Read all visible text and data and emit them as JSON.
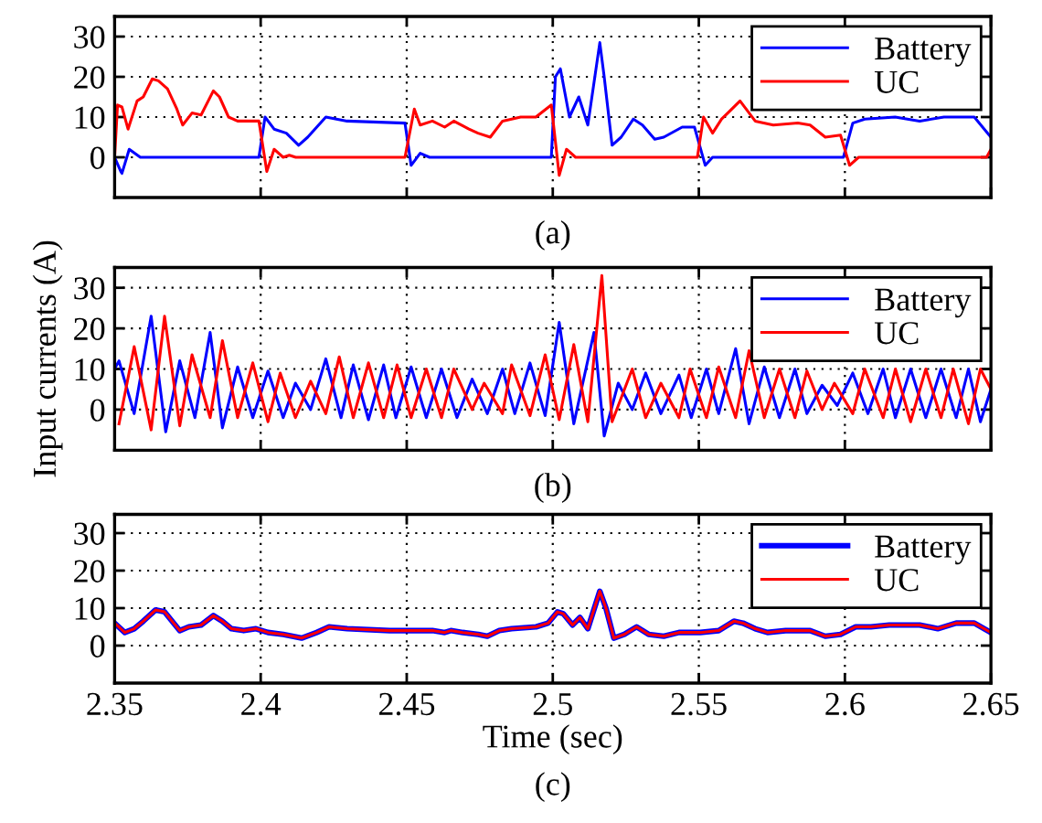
{
  "chart_data": [
    {
      "type": "line",
      "annotations": [
        "(a)"
      ],
      "xlim": [
        2.35,
        2.65
      ],
      "ylim": [
        -10,
        35
      ],
      "xticks": [
        2.35,
        2.4,
        2.45,
        2.5,
        2.55,
        2.6,
        2.65
      ],
      "yticks": [
        0,
        10,
        20,
        30
      ],
      "grid": true,
      "legend": "top right",
      "tick_labels": "y",
      "line_style": "solid",
      "series": [
        {
          "name": "Battery",
          "color": "#0000ff",
          "x": [
            2.35,
            2.3521,
            2.3525,
            2.355,
            2.3588,
            2.3994,
            2.4015,
            2.4046,
            2.4088,
            2.413,
            2.4161,
            2.4223,
            2.4296,
            2.4494,
            2.4515,
            2.4546,
            2.4578,
            2.4995,
            2.5009,
            2.5026,
            2.5057,
            2.5089,
            2.512,
            2.5161,
            2.5176,
            2.5203,
            2.5234,
            2.5276,
            2.5307,
            2.5349,
            2.538,
            2.5443,
            2.5485,
            2.5522,
            2.5547,
            2.5995,
            2.6027,
            2.6068,
            2.6172,
            2.6256,
            2.6339,
            2.6443,
            2.65
          ],
          "values": [
            0,
            -3.5,
            -4,
            2,
            0,
            0,
            10,
            7,
            6,
            3,
            5,
            10,
            9,
            8.5,
            -2,
            1,
            0,
            0,
            20,
            22,
            10,
            15,
            8,
            28.5,
            20,
            3,
            5,
            9.5,
            8,
            4.5,
            5,
            7.5,
            7.5,
            -2,
            0,
            0,
            8.5,
            9.5,
            10,
            9,
            10,
            10,
            5
          ]
        },
        {
          "name": "UC",
          "color": "#ff0000",
          "x": [
            2.35,
            2.351,
            2.3525,
            2.3546,
            2.3577,
            2.3598,
            2.3629,
            2.365,
            2.3681,
            2.3713,
            2.3733,
            2.3765,
            2.3796,
            2.3838,
            2.3859,
            2.389,
            2.3921,
            2.3963,
            2.3994,
            2.4021,
            2.4046,
            2.4077,
            2.4098,
            2.412,
            2.4494,
            2.4526,
            2.4546,
            2.4588,
            2.463,
            2.4661,
            2.4713,
            2.4744,
            2.4786,
            2.4828,
            2.489,
            2.4942,
            2.4995,
            2.5022,
            2.5047,
            2.5078,
            2.5495,
            2.5516,
            2.5547,
            2.5578,
            2.5599,
            2.5641,
            2.5693,
            2.5755,
            2.5839,
            2.5881,
            2.5933,
            2.5985,
            2.6016,
            2.6047,
            2.6485,
            2.65
          ],
          "values": [
            0,
            13,
            12.5,
            7,
            14,
            15,
            19.5,
            19,
            17,
            12,
            8,
            11,
            10.5,
            16.5,
            15,
            10,
            9,
            9,
            9,
            -3.5,
            2,
            0,
            0.5,
            0,
            0,
            12,
            8,
            9,
            7.5,
            9,
            7,
            6,
            5,
            9,
            10,
            10,
            13,
            -4.5,
            2,
            0,
            0,
            10,
            6,
            9.5,
            11,
            14,
            9,
            8,
            8.5,
            8,
            5,
            5.5,
            -2,
            0,
            0,
            2
          ]
        }
      ]
    },
    {
      "type": "line",
      "ylabel": "Input currents (A)",
      "annotations": [
        "(b)"
      ],
      "xlim": [
        2.35,
        2.65
      ],
      "ylim": [
        -10,
        35
      ],
      "xticks": [
        2.35,
        2.4,
        2.45,
        2.5,
        2.55,
        2.6,
        2.65
      ],
      "yticks": [
        0,
        10,
        20,
        30
      ],
      "grid": true,
      "legend": "top right",
      "tick_labels": "y",
      "line_style": "solid",
      "series": [
        {
          "name": "Battery",
          "color": "#0000ff",
          "x": [
            2.35,
            2.3515,
            2.3567,
            2.3625,
            2.3675,
            2.3723,
            2.3775,
            2.3827,
            2.3869,
            2.3921,
            2.3973,
            2.4025,
            2.4077,
            2.4119,
            2.4171,
            2.4223,
            2.4275,
            2.4317,
            2.4369,
            2.4421,
            2.4463,
            2.4515,
            2.4567,
            2.4619,
            2.4672,
            2.4724,
            2.4776,
            2.4828,
            2.487,
            2.4922,
            2.4974,
            2.5022,
            2.5072,
            2.5141,
            2.5176,
            2.5224,
            2.5272,
            2.5318,
            2.537,
            2.5432,
            2.5474,
            2.5526,
            2.5568,
            2.5626,
            2.5672,
            2.5724,
            2.5776,
            2.5829,
            2.587,
            2.5922,
            2.5974,
            2.6027,
            2.6079,
            2.6131,
            2.6173,
            2.6225,
            2.6277,
            2.6329,
            2.6381,
            2.6423,
            2.6464,
            2.65
          ],
          "values": [
            10,
            12,
            -1,
            23,
            -5.5,
            12,
            -2,
            19,
            -4.5,
            10.5,
            -2,
            9.5,
            -2,
            6.5,
            0,
            12.5,
            -2,
            11,
            -2.5,
            11,
            -2,
            10.5,
            -2,
            10,
            -2,
            7.5,
            -1,
            10,
            -1,
            11.5,
            -1.5,
            21.5,
            -3.5,
            19,
            -6.5,
            6.5,
            0,
            9,
            -1,
            8.5,
            -2,
            10,
            -1,
            15,
            -3.5,
            10.5,
            -2,
            10,
            -1,
            6,
            1,
            9,
            -1,
            10,
            -2,
            10,
            -2,
            10,
            -2,
            10,
            -3,
            5
          ]
        },
        {
          "name": "UC",
          "color": "#ff0000",
          "x": [
            2.3515,
            2.3567,
            2.3625,
            2.3671,
            2.3723,
            2.3765,
            2.3827,
            2.3869,
            2.3921,
            2.3973,
            2.4025,
            2.4067,
            2.4119,
            2.4171,
            2.4223,
            2.4269,
            2.4317,
            2.4369,
            2.4421,
            2.4467,
            2.4515,
            2.4567,
            2.4619,
            2.4661,
            2.4724,
            2.4765,
            2.4828,
            2.4859,
            2.4922,
            2.4974,
            2.5022,
            2.5072,
            2.512,
            2.5168,
            2.5203,
            2.5272,
            2.5318,
            2.537,
            2.5432,
            2.547,
            2.5526,
            2.5568,
            2.5626,
            2.5672,
            2.5724,
            2.5776,
            2.5829,
            2.587,
            2.5922,
            2.5964,
            2.6027,
            2.6068,
            2.6131,
            2.6173,
            2.6225,
            2.6277,
            2.6329,
            2.6371,
            2.6423,
            2.6464,
            2.65
          ],
          "values": [
            -3.5,
            15.5,
            -5,
            23,
            -4,
            13.5,
            -2,
            17,
            -2,
            11.5,
            -3,
            9,
            -2,
            7,
            -1,
            13,
            -2,
            11.5,
            -2,
            11,
            -2,
            10,
            -2,
            10,
            0,
            6.5,
            -1,
            11,
            -1.5,
            13.5,
            -2.5,
            16,
            -3,
            33,
            -3,
            10,
            -2,
            6.5,
            -2,
            10,
            -2,
            10.5,
            -2,
            14.5,
            -2,
            10,
            -2,
            9.5,
            0,
            6.5,
            -1,
            10,
            -2,
            10,
            -3,
            10,
            -2,
            10,
            -3.5,
            10,
            5
          ]
        }
      ]
    },
    {
      "type": "line",
      "xlabel": "Time (sec)",
      "annotations": [
        "(c)"
      ],
      "xlim": [
        2.35,
        2.65
      ],
      "ylim": [
        -10,
        35
      ],
      "xticks": [
        2.35,
        2.4,
        2.45,
        2.5,
        2.55,
        2.6,
        2.65
      ],
      "yticks": [
        0,
        10,
        20,
        30
      ],
      "grid": true,
      "legend": "top right",
      "line_style": "solid",
      "series": [
        {
          "name": "Battery",
          "color": "#0000ff",
          "x": [
            2.35,
            2.3535,
            2.3567,
            2.3598,
            2.364,
            2.3671,
            2.3702,
            2.3723,
            2.3754,
            2.3796,
            2.3838,
            2.3869,
            2.39,
            2.3942,
            2.3984,
            2.4025,
            2.4077,
            2.414,
            2.4192,
            2.4234,
            2.4296,
            2.4442,
            2.4588,
            2.463,
            2.4651,
            2.4692,
            2.4745,
            2.4776,
            2.4817,
            2.4859,
            2.4943,
            2.4984,
            2.5016,
            2.5036,
            2.5068,
            2.5093,
            2.512,
            2.5161,
            2.5182,
            2.5209,
            2.5245,
            2.5287,
            2.5328,
            2.538,
            2.5432,
            2.5505,
            2.5568,
            2.562,
            2.5651,
            2.5693,
            2.5735,
            2.5797,
            2.5881,
            2.5933,
            2.5985,
            2.6037,
            2.6089,
            2.6152,
            2.6256,
            2.6318,
            2.6381,
            2.6443,
            2.65
          ],
          "values": [
            6,
            3.5,
            4.5,
            6.5,
            9.5,
            9,
            6,
            4,
            5,
            5.5,
            8,
            6.5,
            4.5,
            4,
            4.5,
            3.5,
            3,
            2,
            3.5,
            5,
            4.5,
            4,
            4,
            3.5,
            4,
            3.5,
            3,
            2.5,
            4,
            4.5,
            5,
            6,
            9,
            8.5,
            5.5,
            7.5,
            4.5,
            14.5,
            10,
            2,
            3,
            5,
            3,
            2.5,
            3.5,
            3.5,
            4,
            6.5,
            6,
            4.5,
            3.5,
            4,
            4,
            2.5,
            3,
            5,
            5,
            5.5,
            5.5,
            4.5,
            6,
            6,
            3.5
          ]
        },
        {
          "name": "UC",
          "color": "#ff0000",
          "x": [
            2.35,
            2.3535,
            2.3567,
            2.3598,
            2.364,
            2.3671,
            2.3702,
            2.3723,
            2.3754,
            2.3796,
            2.3838,
            2.3869,
            2.39,
            2.3942,
            2.3984,
            2.4025,
            2.4077,
            2.414,
            2.4192,
            2.4234,
            2.4296,
            2.4442,
            2.4588,
            2.463,
            2.4651,
            2.4692,
            2.4745,
            2.4776,
            2.4817,
            2.4859,
            2.4943,
            2.4984,
            2.5016,
            2.5036,
            2.5068,
            2.5093,
            2.512,
            2.5161,
            2.5182,
            2.5209,
            2.5245,
            2.5287,
            2.5328,
            2.538,
            2.5432,
            2.5505,
            2.5568,
            2.562,
            2.5651,
            2.5693,
            2.5735,
            2.5797,
            2.5881,
            2.5933,
            2.5985,
            2.6037,
            2.6089,
            2.6152,
            2.6256,
            2.6318,
            2.6381,
            2.6443,
            2.65
          ],
          "values": [
            6,
            3.5,
            4.5,
            6.5,
            9.5,
            9,
            6,
            4,
            5,
            5.5,
            8,
            6.5,
            4.5,
            4,
            4.5,
            3.5,
            3,
            2,
            3.5,
            5,
            4.5,
            4,
            4,
            3.5,
            4,
            3.5,
            3,
            2.5,
            4,
            4.5,
            5,
            6,
            9,
            8.5,
            5.5,
            7.5,
            4.5,
            14.5,
            10,
            2,
            3,
            5,
            3,
            2.5,
            3.5,
            3.5,
            4,
            6.5,
            6,
            4.5,
            3.5,
            4,
            4,
            2.5,
            3,
            5,
            5,
            5.5,
            5.5,
            4.5,
            6,
            6,
            3.5
          ]
        }
      ]
    }
  ]
}
